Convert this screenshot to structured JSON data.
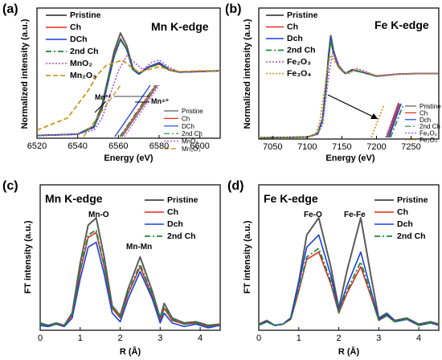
{
  "colors": {
    "pristine": "#5a5a5a",
    "ch": "#e8281e",
    "dch": "#1a3fe0",
    "second_ch": "#1a8a3a",
    "mno2": "#b04ad8",
    "mn2o3": "#c98a0a",
    "fe2o3": "#b04ad8",
    "fe3o4": "#d98a10",
    "arrow": "#000000"
  },
  "panels": {
    "a": {
      "letter": "(a)",
      "edge_title": "Mn K-edge",
      "xlabel": "Energy (eV)",
      "ylabel": "Normalized intensity (a.u.)",
      "xticks": [
        "6520",
        "6540",
        "6560",
        "6580",
        "6600"
      ],
      "legend": [
        "Pristine",
        "Ch",
        "DCh",
        "2nd Ch",
        "MnO₂",
        "Mn₂O₃"
      ],
      "inset_legend": [
        "Pristine",
        "Ch",
        "DCh",
        "2nd Ch",
        "MnO₂",
        "Mn₂O₃"
      ],
      "annot_left": "Mn³⁺",
      "annot_right": "Mn⁴⁺"
    },
    "b": {
      "letter": "(b)",
      "edge_title": "Fe K-edge",
      "xlabel": "Energy (eV)",
      "ylabel": "Normalized intensity (a.u.)",
      "xticks": [
        "7050",
        "7100",
        "7150",
        "7200",
        "7250"
      ],
      "legend": [
        "Pristine",
        "Ch",
        "Dch",
        "2nd Ch",
        "Fe₂O₃",
        "Fe₃O₄"
      ],
      "inset_legend": [
        "Pristine",
        "Ch",
        "Dch",
        "2nd Ch",
        "Fe₂O₃",
        "Fe₃O₄"
      ]
    },
    "c": {
      "letter": "(c)",
      "edge_title": "Mn K-edge",
      "xlabel": "R (Å)",
      "ylabel": "FT intensity (a.u.)",
      "xticks": [
        "0",
        "1",
        "2",
        "3",
        "4"
      ],
      "legend": [
        "Pristine",
        "Ch",
        "Dch",
        "2nd Ch"
      ],
      "peak1": "Mn-O",
      "peak2": "Mn-Mn"
    },
    "d": {
      "letter": "(d)",
      "edge_title": "Fe K-edge",
      "xlabel": "R (Å)",
      "ylabel": "FT intensity (a.u.)",
      "xticks": [
        "0",
        "1",
        "2",
        "3",
        "4"
      ],
      "legend": [
        "Pristine",
        "Ch",
        "Dch",
        "2nd Ch"
      ],
      "peak1": "Fe-O",
      "peak2": "Fe-Fe"
    }
  },
  "chart_data": [
    {
      "panel": "a",
      "type": "line",
      "title": "Mn K-edge",
      "xlabel": "Energy (eV)",
      "ylabel": "Normalized intensity (a.u.)",
      "xlim": [
        6520,
        6610
      ],
      "ylim": [
        0,
        1.7
      ],
      "series": [
        {
          "name": "Pristine",
          "x": [
            6520,
            6540,
            6548,
            6552,
            6555,
            6558,
            6561,
            6564,
            6567,
            6570,
            6575,
            6580,
            6585,
            6590,
            6600,
            6610
          ],
          "y": [
            0.04,
            0.06,
            0.18,
            0.5,
            0.9,
            1.3,
            1.56,
            1.38,
            1.05,
            0.96,
            1.06,
            1.12,
            1.02,
            0.98,
            0.99,
            1.0
          ]
        },
        {
          "name": "Ch",
          "x": [
            6520,
            6540,
            6548,
            6552,
            6555,
            6558,
            6561,
            6564,
            6567,
            6570,
            6575,
            6580,
            6585,
            6590,
            6600,
            6610
          ],
          "y": [
            0.04,
            0.06,
            0.17,
            0.47,
            0.86,
            1.24,
            1.48,
            1.33,
            1.03,
            0.95,
            1.05,
            1.1,
            1.01,
            0.98,
            0.99,
            1.0
          ]
        },
        {
          "name": "DCh",
          "x": [
            6520,
            6540,
            6548,
            6552,
            6555,
            6558,
            6561,
            6564,
            6567,
            6570,
            6575,
            6580,
            6585,
            6590,
            6600,
            6610
          ],
          "y": [
            0.04,
            0.06,
            0.16,
            0.44,
            0.84,
            1.22,
            1.46,
            1.32,
            1.02,
            0.95,
            1.06,
            1.12,
            1.02,
            0.98,
            0.99,
            1.0
          ]
        },
        {
          "name": "2nd Ch",
          "x": [
            6520,
            6540,
            6548,
            6552,
            6555,
            6558,
            6561,
            6564,
            6567,
            6570,
            6575,
            6580,
            6585,
            6590,
            6600,
            6610
          ],
          "y": [
            0.04,
            0.06,
            0.17,
            0.46,
            0.85,
            1.23,
            1.47,
            1.32,
            1.03,
            0.95,
            1.05,
            1.1,
            1.01,
            0.98,
            0.99,
            1.0
          ]
        },
        {
          "name": "MnO₂",
          "x": [
            6520,
            6540,
            6548,
            6552,
            6556,
            6560,
            6564,
            6568,
            6572,
            6576,
            6580,
            6585,
            6590,
            6600,
            6610
          ],
          "y": [
            0.04,
            0.06,
            0.12,
            0.3,
            0.65,
            1.0,
            1.22,
            1.12,
            1.02,
            1.12,
            1.16,
            1.05,
            0.98,
            0.99,
            1.0
          ]
        },
        {
          "name": "Mn₂O₃",
          "x": [
            6520,
            6535,
            6545,
            6550,
            6554,
            6558,
            6562,
            6566,
            6570,
            6575,
            6580,
            6585,
            6590,
            6600,
            6610
          ],
          "y": [
            0.12,
            0.3,
            0.7,
            0.95,
            1.08,
            1.12,
            1.16,
            1.06,
            0.98,
            1.02,
            1.06,
            1.02,
            0.99,
            1.0,
            1.0
          ]
        }
      ]
    },
    {
      "panel": "b",
      "type": "line",
      "title": "Fe K-edge",
      "xlabel": "Energy (eV)",
      "ylabel": "Normalized intensity (a.u.)",
      "xlim": [
        7030,
        7290
      ],
      "ylim": [
        0,
        1.7
      ],
      "series": [
        {
          "name": "Pristine",
          "x": [
            7030,
            7100,
            7115,
            7122,
            7127,
            7131,
            7134,
            7138,
            7145,
            7155,
            7165,
            7180,
            7200,
            7230,
            7260,
            7290
          ],
          "y": [
            0.02,
            0.03,
            0.08,
            0.3,
            0.8,
            1.3,
            1.58,
            1.35,
            1.12,
            1.0,
            1.06,
            1.02,
            0.96,
            0.99,
            1.0,
            1.0
          ]
        },
        {
          "name": "Ch",
          "x": [
            7030,
            7100,
            7115,
            7122,
            7127,
            7131,
            7134,
            7138,
            7145,
            7155,
            7165,
            7180,
            7200,
            7230,
            7260,
            7290
          ],
          "y": [
            0.02,
            0.03,
            0.08,
            0.28,
            0.76,
            1.24,
            1.5,
            1.3,
            1.1,
            1.0,
            1.05,
            1.02,
            0.96,
            0.99,
            1.0,
            1.0
          ]
        },
        {
          "name": "Dch",
          "x": [
            7030,
            7100,
            7115,
            7122,
            7127,
            7131,
            7134,
            7138,
            7145,
            7155,
            7165,
            7180,
            7200,
            7230,
            7260,
            7290
          ],
          "y": [
            0.02,
            0.03,
            0.08,
            0.29,
            0.78,
            1.27,
            1.54,
            1.32,
            1.11,
            1.0,
            1.05,
            1.02,
            0.96,
            0.99,
            1.0,
            1.0
          ]
        },
        {
          "name": "2nd Ch",
          "x": [
            7030,
            7100,
            7115,
            7122,
            7127,
            7131,
            7134,
            7138,
            7145,
            7155,
            7165,
            7180,
            7200,
            7230,
            7260,
            7290
          ],
          "y": [
            0.02,
            0.03,
            0.08,
            0.28,
            0.77,
            1.25,
            1.52,
            1.31,
            1.1,
            1.0,
            1.05,
            1.02,
            0.96,
            0.99,
            1.0,
            1.0
          ]
        },
        {
          "name": "Fe₂O₃",
          "x": [
            7030,
            7100,
            7115,
            7122,
            7127,
            7132,
            7137,
            7142,
            7150,
            7160,
            7170,
            7185,
            7200,
            7230,
            7260,
            7290
          ],
          "y": [
            0.02,
            0.03,
            0.07,
            0.22,
            0.62,
            1.05,
            1.32,
            1.22,
            1.04,
            1.0,
            1.08,
            1.03,
            0.96,
            0.99,
            1.0,
            1.0
          ]
        },
        {
          "name": "Fe₃O₄",
          "x": [
            7030,
            7100,
            7112,
            7118,
            7124,
            7129,
            7134,
            7140,
            7150,
            7160,
            7170,
            7185,
            7200,
            7230,
            7260,
            7290
          ],
          "y": [
            0.02,
            0.03,
            0.08,
            0.25,
            0.68,
            1.08,
            1.28,
            1.18,
            1.03,
            1.0,
            1.06,
            1.02,
            0.97,
            0.99,
            1.0,
            1.0
          ]
        }
      ]
    },
    {
      "panel": "c",
      "type": "line",
      "title": "Mn K-edge",
      "xlabel": "R (Å)",
      "ylabel": "FT intensity (a.u.)",
      "xlim": [
        0,
        4.5
      ],
      "ylim": [
        0,
        1.0
      ],
      "series": [
        {
          "name": "Pristine",
          "x": [
            0,
            0.2,
            0.4,
            0.6,
            0.8,
            1.0,
            1.2,
            1.4,
            1.6,
            1.8,
            2.0,
            2.2,
            2.5,
            2.8,
            3.0,
            3.1,
            3.3,
            3.6,
            3.9,
            4.2,
            4.5
          ],
          "y": [
            0.06,
            0.04,
            0.06,
            0.04,
            0.14,
            0.55,
            0.86,
            0.92,
            0.6,
            0.2,
            0.12,
            0.34,
            0.6,
            0.32,
            0.1,
            0.22,
            0.1,
            0.06,
            0.07,
            0.04,
            0.05
          ]
        },
        {
          "name": "Ch",
          "x": [
            0,
            0.2,
            0.4,
            0.6,
            0.8,
            1.0,
            1.2,
            1.4,
            1.6,
            1.8,
            2.0,
            2.2,
            2.5,
            2.8,
            3.0,
            3.1,
            3.3,
            3.6,
            3.9,
            4.2,
            4.5
          ],
          "y": [
            0.05,
            0.03,
            0.05,
            0.04,
            0.12,
            0.48,
            0.76,
            0.8,
            0.52,
            0.18,
            0.1,
            0.3,
            0.52,
            0.28,
            0.08,
            0.18,
            0.08,
            0.05,
            0.06,
            0.03,
            0.05
          ]
        },
        {
          "name": "Dch",
          "x": [
            0,
            0.2,
            0.4,
            0.6,
            0.8,
            1.0,
            1.2,
            1.4,
            1.6,
            1.8,
            2.0,
            2.2,
            2.5,
            2.8,
            3.0,
            3.1,
            3.3,
            3.6,
            3.9,
            4.2,
            4.5
          ],
          "y": [
            0.04,
            0.03,
            0.05,
            0.03,
            0.1,
            0.42,
            0.68,
            0.72,
            0.46,
            0.14,
            0.07,
            0.26,
            0.48,
            0.26,
            0.06,
            0.14,
            0.06,
            0.03,
            0.05,
            0.02,
            0.04
          ]
        },
        {
          "name": "2nd Ch",
          "x": [
            0,
            0.2,
            0.4,
            0.6,
            0.8,
            1.0,
            1.2,
            1.4,
            1.6,
            1.8,
            2.0,
            2.2,
            2.5,
            2.8,
            3.0,
            3.1,
            3.3,
            3.6,
            3.9,
            4.2,
            4.5
          ],
          "y": [
            0.05,
            0.04,
            0.05,
            0.04,
            0.13,
            0.5,
            0.78,
            0.82,
            0.53,
            0.19,
            0.11,
            0.31,
            0.54,
            0.29,
            0.09,
            0.19,
            0.09,
            0.05,
            0.06,
            0.03,
            0.05
          ]
        }
      ]
    },
    {
      "panel": "d",
      "type": "line",
      "title": "Fe K-edge",
      "xlabel": "R (Å)",
      "ylabel": "FT intensity (a.u.)",
      "xlim": [
        0,
        4.5
      ],
      "ylim": [
        0,
        1.0
      ],
      "series": [
        {
          "name": "Pristine",
          "x": [
            0,
            0.2,
            0.4,
            0.6,
            0.8,
            1.0,
            1.2,
            1.5,
            1.8,
            2.0,
            2.2,
            2.55,
            2.8,
            3.0,
            3.2,
            3.4,
            3.7,
            4.0,
            4.3,
            4.5
          ],
          "y": [
            0.05,
            0.08,
            0.04,
            0.05,
            0.1,
            0.4,
            0.78,
            0.92,
            0.52,
            0.18,
            0.48,
            0.92,
            0.45,
            0.1,
            0.14,
            0.08,
            0.1,
            0.05,
            0.07,
            0.05
          ]
        },
        {
          "name": "Ch",
          "x": [
            0,
            0.2,
            0.4,
            0.6,
            0.8,
            1.0,
            1.2,
            1.5,
            1.8,
            2.0,
            2.2,
            2.55,
            2.8,
            3.0,
            3.2,
            3.4,
            3.7,
            4.0,
            4.3,
            4.5
          ],
          "y": [
            0.04,
            0.07,
            0.04,
            0.05,
            0.09,
            0.32,
            0.58,
            0.64,
            0.38,
            0.14,
            0.3,
            0.52,
            0.28,
            0.08,
            0.12,
            0.07,
            0.09,
            0.04,
            0.06,
            0.04
          ]
        },
        {
          "name": "Dch",
          "x": [
            0,
            0.2,
            0.4,
            0.6,
            0.8,
            1.0,
            1.2,
            1.5,
            1.8,
            2.0,
            2.2,
            2.55,
            2.8,
            3.0,
            3.2,
            3.4,
            3.7,
            4.0,
            4.3,
            4.5
          ],
          "y": [
            0.04,
            0.07,
            0.04,
            0.05,
            0.1,
            0.38,
            0.68,
            0.78,
            0.45,
            0.16,
            0.36,
            0.64,
            0.33,
            0.09,
            0.13,
            0.07,
            0.09,
            0.04,
            0.06,
            0.04
          ]
        },
        {
          "name": "2nd Ch",
          "x": [
            0,
            0.2,
            0.4,
            0.6,
            0.8,
            1.0,
            1.2,
            1.5,
            1.8,
            2.0,
            2.2,
            2.55,
            2.8,
            3.0,
            3.2,
            3.4,
            3.7,
            4.0,
            4.3,
            4.5
          ],
          "y": [
            0.04,
            0.07,
            0.04,
            0.05,
            0.09,
            0.33,
            0.6,
            0.67,
            0.4,
            0.15,
            0.32,
            0.56,
            0.3,
            0.08,
            0.12,
            0.07,
            0.09,
            0.04,
            0.06,
            0.04
          ]
        }
      ]
    }
  ]
}
